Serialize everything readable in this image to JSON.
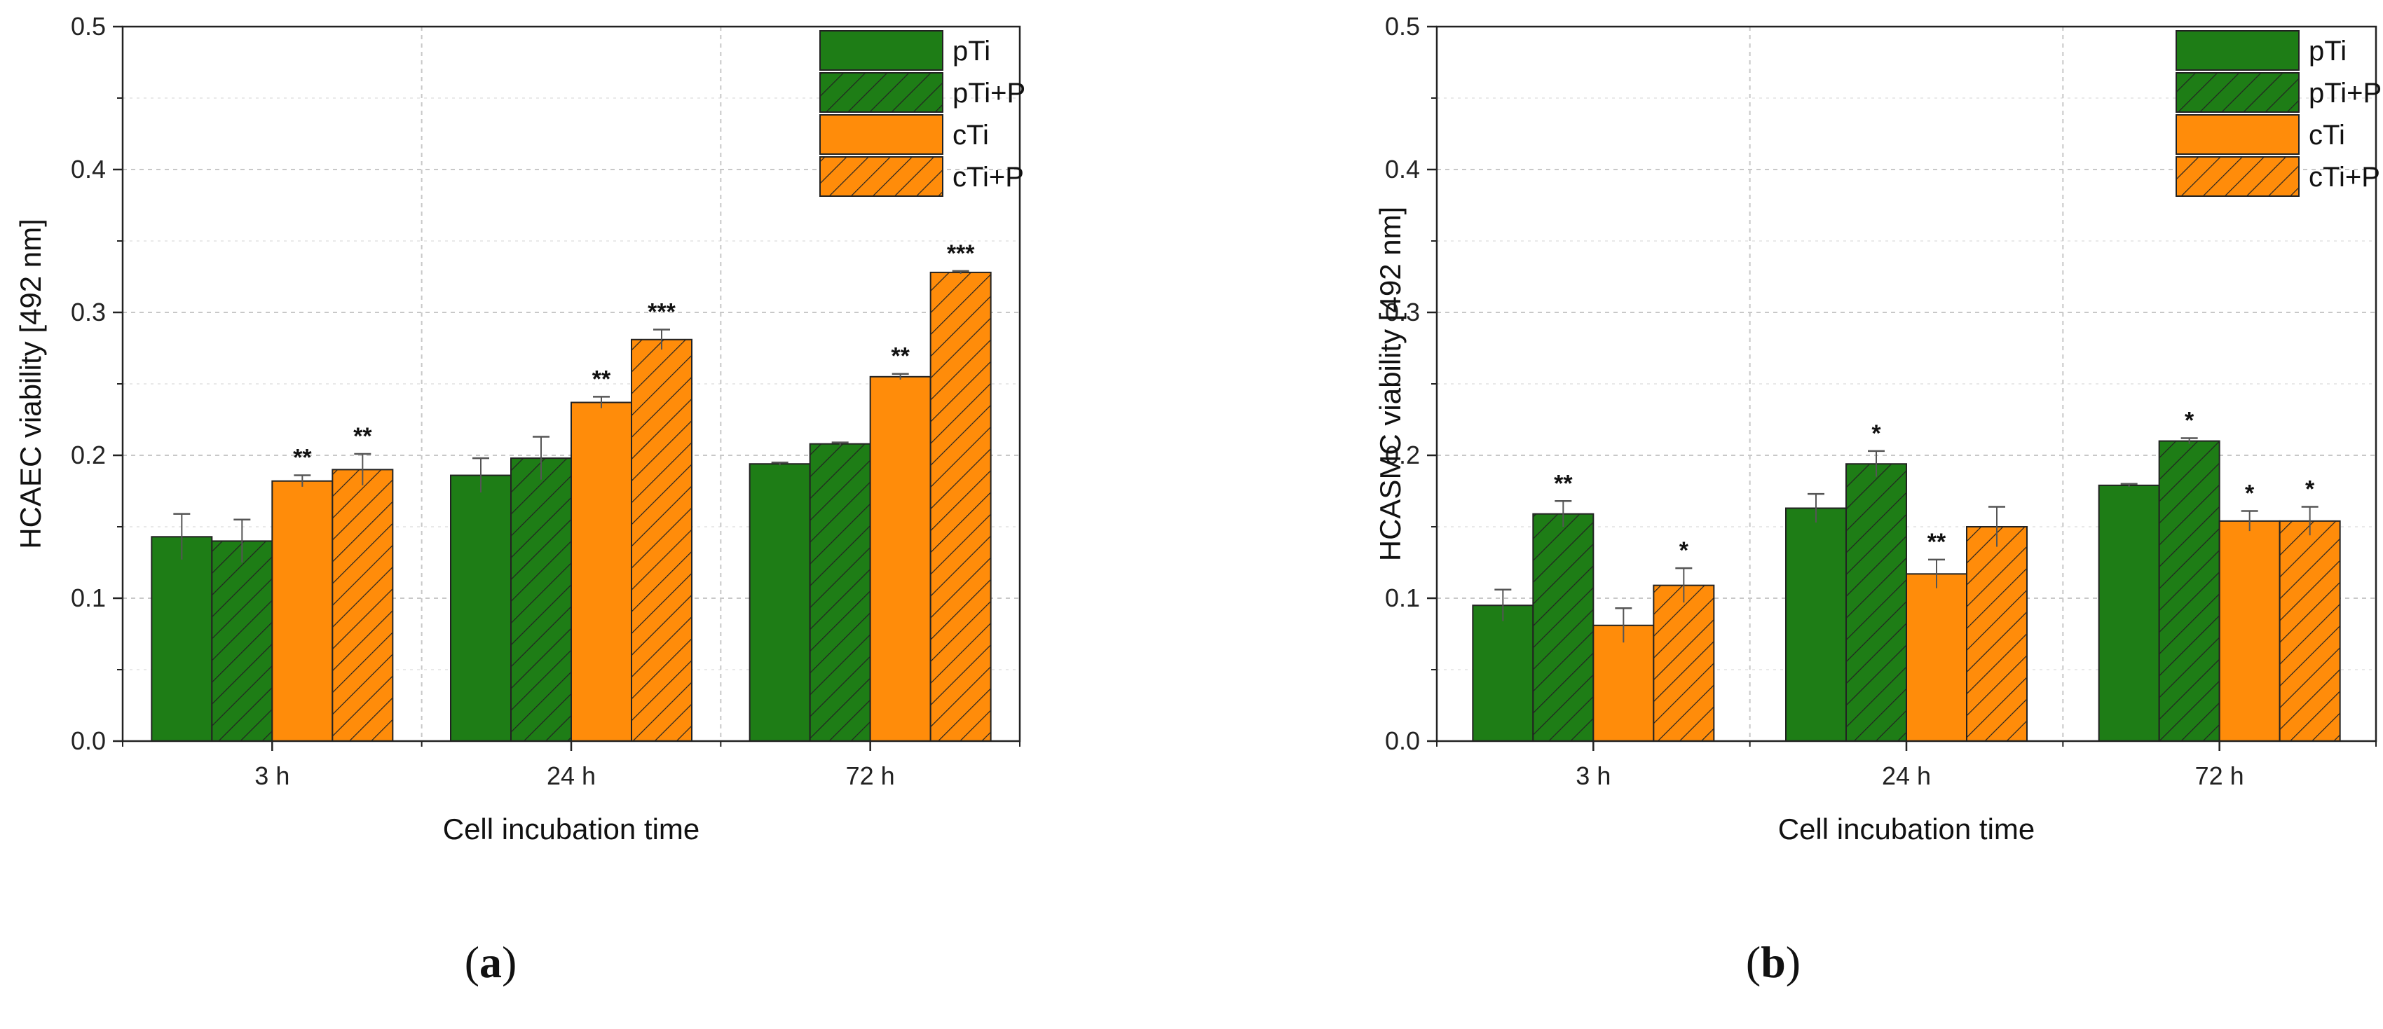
{
  "figure": {
    "panel_labels": [
      {
        "open": "(",
        "letter": "a",
        "close": ")"
      },
      {
        "open": "(",
        "letter": "b",
        "close": ")"
      }
    ]
  },
  "colors": {
    "green": "#1e7d16",
    "orange": "#ff8c0a",
    "bar_stroke": "#222222",
    "hatch": "#222222",
    "grid": "#c8c8c8",
    "axis": "#222222",
    "errorbar": "#555555"
  },
  "chart_data": [
    {
      "type": "bar",
      "panel": "a",
      "title": "",
      "xlabel": "Cell incubation time",
      "ylabel": "HCAEC viability [492 nm]",
      "ylim": [
        0,
        0.5
      ],
      "yticks": [
        0.0,
        0.1,
        0.2,
        0.3,
        0.4,
        0.5
      ],
      "ytick_labels": [
        "0.0",
        "0.1",
        "0.2",
        "0.3",
        "0.4",
        "0.5"
      ],
      "categories": [
        "3 h",
        "24 h",
        "72 h"
      ],
      "grid": true,
      "legend_position": "top-right",
      "series": [
        {
          "name": "pTi",
          "color": "green",
          "hatched": false,
          "values": [
            0.143,
            0.186,
            0.194
          ],
          "errors": [
            0.016,
            0.012,
            0.001
          ],
          "significance": [
            "",
            "",
            ""
          ]
        },
        {
          "name": "pTi+P",
          "color": "green",
          "hatched": true,
          "values": [
            0.14,
            0.198,
            0.208
          ],
          "errors": [
            0.015,
            0.015,
            0.001
          ],
          "significance": [
            "",
            "",
            ""
          ]
        },
        {
          "name": "cTi",
          "color": "orange",
          "hatched": false,
          "values": [
            0.182,
            0.237,
            0.255
          ],
          "errors": [
            0.004,
            0.004,
            0.002
          ],
          "significance": [
            "**",
            "**",
            "**"
          ]
        },
        {
          "name": "cTi+P",
          "color": "orange",
          "hatched": true,
          "values": [
            0.19,
            0.281,
            0.328
          ],
          "errors": [
            0.011,
            0.007,
            0.001
          ],
          "significance": [
            "**",
            "***",
            "***"
          ]
        }
      ]
    },
    {
      "type": "bar",
      "panel": "b",
      "title": "",
      "xlabel": "Cell incubation time",
      "ylabel": "HCASMC viability [492 nm]",
      "ylim": [
        0,
        0.5
      ],
      "yticks": [
        0.0,
        0.1,
        0.2,
        0.3,
        0.4,
        0.5
      ],
      "ytick_labels": [
        "0.0",
        "0.1",
        "0.2",
        "0.3",
        "0.4",
        "0.5"
      ],
      "categories": [
        "3 h",
        "24 h",
        "72 h"
      ],
      "grid": true,
      "legend_position": "top-right",
      "series": [
        {
          "name": "pTi",
          "color": "green",
          "hatched": false,
          "values": [
            0.095,
            0.163,
            0.179
          ],
          "errors": [
            0.011,
            0.01,
            0.001
          ],
          "significance": [
            "",
            "",
            ""
          ]
        },
        {
          "name": "pTi+P",
          "color": "green",
          "hatched": true,
          "values": [
            0.159,
            0.194,
            0.21
          ],
          "errors": [
            0.009,
            0.009,
            0.002
          ],
          "significance": [
            "**",
            "*",
            "*"
          ]
        },
        {
          "name": "cTi",
          "color": "orange",
          "hatched": false,
          "values": [
            0.081,
            0.117,
            0.154
          ],
          "errors": [
            0.012,
            0.01,
            0.007
          ],
          "significance": [
            "",
            "**",
            "*"
          ]
        },
        {
          "name": "cTi+P",
          "color": "orange",
          "hatched": true,
          "values": [
            0.109,
            0.15,
            0.154
          ],
          "errors": [
            0.012,
            0.014,
            0.01
          ],
          "significance": [
            "*",
            "",
            "*"
          ]
        }
      ]
    }
  ]
}
